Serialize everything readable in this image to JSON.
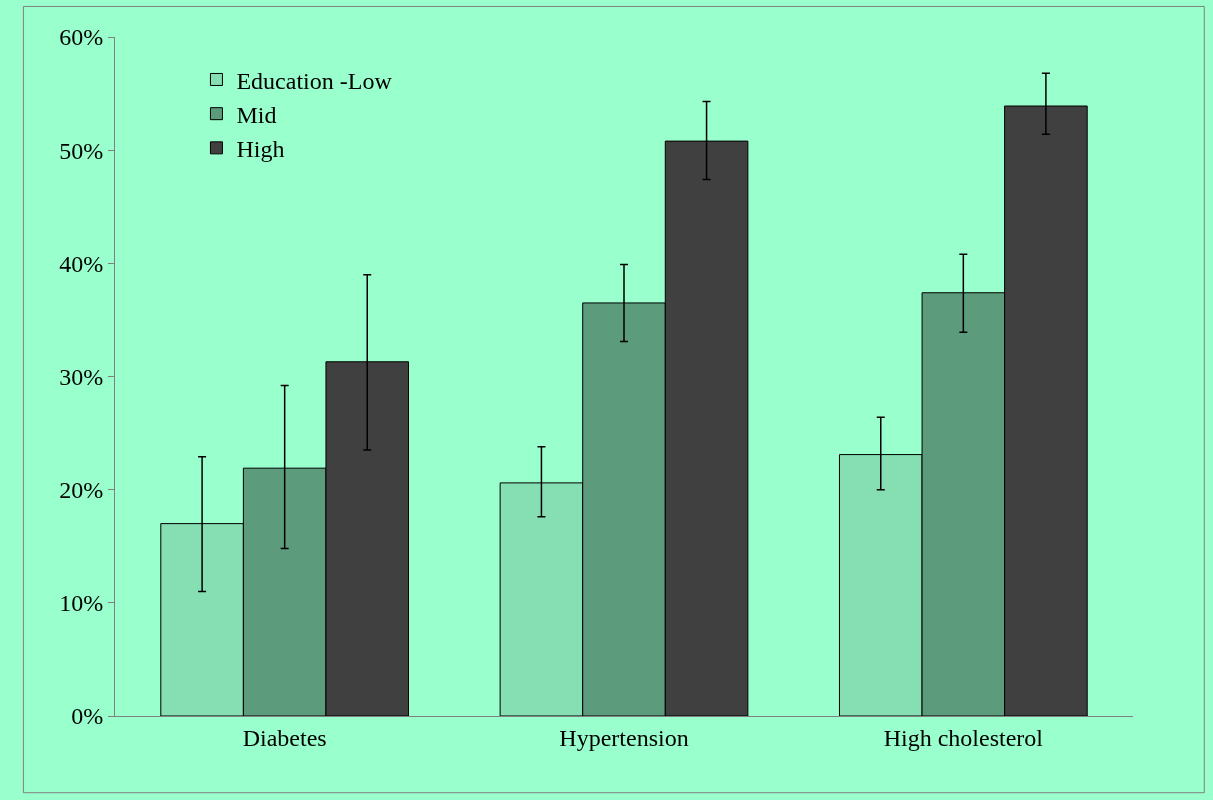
{
  "chart_data": {
    "type": "bar",
    "categories": [
      "Diabetes",
      "Hypertension",
      "High cholesterol"
    ],
    "series": [
      {
        "name": "Education -Low",
        "color": "#85dfb2",
        "values": [
          17.0,
          20.6,
          23.1
        ],
        "errors": [
          [
            11.0,
            22.9
          ],
          [
            17.6,
            23.8
          ],
          [
            20.0,
            26.4
          ]
        ]
      },
      {
        "name": "Mid",
        "color": "#5c9c7c",
        "values": [
          21.9,
          36.5,
          37.4
        ],
        "errors": [
          [
            14.8,
            29.2
          ],
          [
            33.1,
            39.9
          ],
          [
            33.9,
            40.8
          ]
        ]
      },
      {
        "name": "High",
        "color": "#404040",
        "values": [
          31.3,
          50.8,
          53.9
        ],
        "errors": [
          [
            23.5,
            39.0
          ],
          [
            47.4,
            54.3
          ],
          [
            51.4,
            56.8
          ]
        ]
      }
    ],
    "ylim": [
      0,
      60
    ],
    "yticks": [
      {
        "value": 0,
        "label": "0%"
      },
      {
        "value": 10,
        "label": "10%"
      },
      {
        "value": 20,
        "label": "20%"
      },
      {
        "value": 30,
        "label": "30%"
      },
      {
        "value": 40,
        "label": "40%"
      },
      {
        "value": 50,
        "label": "50%"
      },
      {
        "value": 60,
        "label": "60%"
      }
    ],
    "grid": false,
    "legend": "top left"
  }
}
